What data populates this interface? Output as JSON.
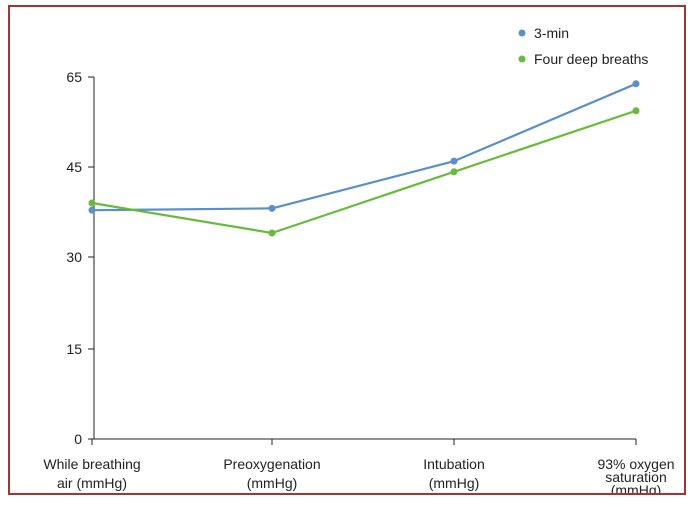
{
  "chart_data": {
    "type": "line",
    "categories": [
      [
        "While breathing",
        "air (mmHg)"
      ],
      [
        "Preoxygenation",
        "(mmHg)"
      ],
      [
        "Intubation",
        "(mmHg)"
      ],
      [
        "93% oxygen",
        "saturation",
        "(mmHg)"
      ]
    ],
    "y_ticks": [
      "0",
      "15",
      "30",
      "45",
      "65"
    ],
    "series": [
      {
        "name": "3-min",
        "color": "#5b8fc7",
        "values": [
          37.8,
          38.1,
          46.3,
          63.5
        ]
      },
      {
        "name": "Four deep breaths",
        "color": "#66bb3a",
        "values": [
          39,
          34,
          44.2,
          57.5
        ]
      }
    ],
    "ylim": [
      0,
      65
    ],
    "grid": false,
    "legend": "top-right"
  }
}
